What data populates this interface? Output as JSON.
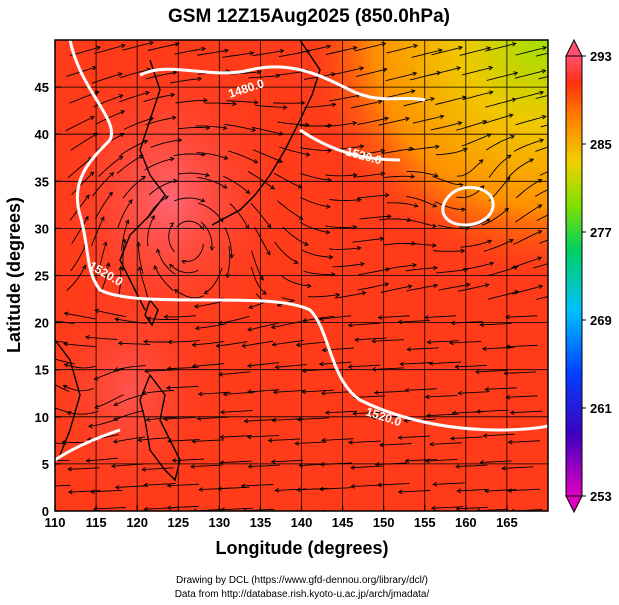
{
  "title": "GSM 12Z15Aug2025 (850.0hPa)",
  "x_axis": {
    "label": "Longitude (degrees)",
    "min": 110,
    "max": 170,
    "ticks": [
      "110",
      "115",
      "120",
      "125",
      "130",
      "135",
      "140",
      "145",
      "150",
      "155",
      "160",
      "165"
    ]
  },
  "y_axis": {
    "label": "Latitude  (degrees)",
    "min": 0,
    "max": 50,
    "ticks": [
      "0",
      "5",
      "10",
      "15",
      "20",
      "25",
      "30",
      "35",
      "40",
      "45"
    ]
  },
  "colorbar": {
    "min": 253,
    "max": 293,
    "ticks": [
      "253",
      "261",
      "269",
      "277",
      "285",
      "293"
    ]
  },
  "contour_labels": [
    "1480.0",
    "1520.0",
    "1520.0",
    "1520.0"
  ],
  "credits": [
    "Drawing by DCL (https://www.gfd-dennou.org/library/dcl/)",
    "Data from http://database.rish.kyoto-u.ac.jp/arch/jmadata/"
  ],
  "colors": {
    "field_warm": "#ff3b1a",
    "field_hot": "#ff5a6a",
    "field_mid": "#ff7a00",
    "field_cool": "#f0c800",
    "field_green": "#9fe000",
    "contour": "#ffffff",
    "coast": "#000000"
  }
}
